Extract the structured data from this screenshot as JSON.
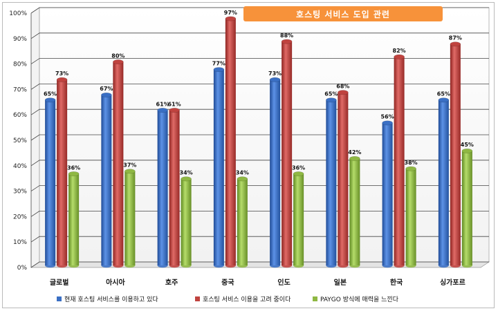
{
  "chart_data": {
    "type": "bar",
    "title": "호스팅 서비스 도입 관련",
    "categories": [
      "글로벌",
      "아시아",
      "호주",
      "중국",
      "인도",
      "일본",
      "한국",
      "싱가포르"
    ],
    "series": [
      {
        "name": "현재 호스팅 서비스를 이용하고 있다",
        "color": "#3a6fc4",
        "values": [
          65,
          67,
          61,
          77,
          73,
          65,
          56,
          65
        ]
      },
      {
        "name": "호스팅 서비스 이용을 고려 중이다",
        "color": "#c0433f",
        "values": [
          73,
          80,
          61,
          97,
          88,
          68,
          82,
          87
        ]
      },
      {
        "name": "PAYGO 방식에 매력을 느낀다",
        "color": "#8fb843",
        "values": [
          36,
          37,
          34,
          34,
          36,
          42,
          38,
          45
        ]
      }
    ],
    "ylim": [
      0,
      100
    ],
    "yticks": [
      "0%",
      "10%",
      "20%",
      "30%",
      "40%",
      "50%",
      "60%",
      "70%",
      "80%",
      "90%",
      "100%"
    ],
    "value_suffix": "%",
    "grid": true,
    "legend_position": "bottom",
    "style": "3d-cylinder"
  }
}
